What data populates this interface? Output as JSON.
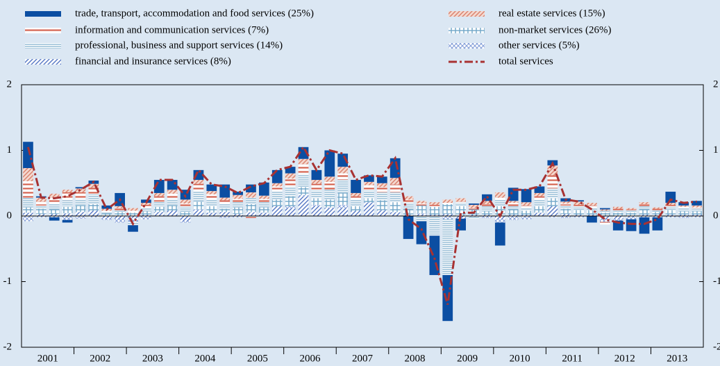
{
  "chart_data": {
    "type": "bar",
    "stacked": true,
    "categories": [
      null,
      "2001",
      null,
      null,
      null,
      "2002",
      null,
      null,
      null,
      "2003",
      null,
      null,
      null,
      "2004",
      null,
      null,
      null,
      "2005",
      null,
      null,
      null,
      "2006",
      null,
      null,
      null,
      "2007",
      null,
      null,
      null,
      "2008",
      null,
      null,
      null,
      "2009",
      null,
      null,
      null,
      "2010",
      null,
      null,
      null,
      "2011",
      null,
      null,
      null,
      "2012",
      null,
      null,
      null,
      "2013",
      null,
      null
    ],
    "series": [
      {
        "name": "trade, transport, accommodation and food services (25%)",
        "color": "#0b4ea2",
        "values": [
          0.4,
          0.02,
          -0.05,
          -0.04,
          0.02,
          0.05,
          0.05,
          0.2,
          -0.1,
          0.05,
          0.2,
          0.15,
          0.15,
          0.15,
          0.1,
          0.2,
          0.05,
          0.12,
          0.2,
          0.2,
          0.1,
          0.18,
          0.15,
          0.4,
          0.2,
          0.2,
          0.1,
          0.1,
          0.3,
          -0.35,
          -0.35,
          -0.6,
          -0.7,
          -0.18,
          0.02,
          0.1,
          -0.35,
          0.2,
          0.2,
          0.1,
          0.08,
          0.05,
          0.02,
          -0.1,
          0.02,
          -0.15,
          -0.18,
          -0.25,
          -0.2,
          0.17,
          0.05,
          0.07
        ]
      },
      {
        "name": "information and communication services (7%)",
        "color": "#d4624f",
        "values": [
          0.25,
          0.06,
          0.1,
          0.12,
          0.1,
          0.1,
          0.02,
          0.04,
          0.03,
          0.05,
          0.08,
          0.08,
          0.05,
          0.12,
          0.08,
          0.05,
          0.05,
          -0.03,
          0.05,
          0.08,
          0.12,
          0.15,
          0.1,
          0.12,
          0.1,
          0.05,
          0.08,
          0.08,
          0.12,
          0.05,
          0.03,
          0.03,
          0.02,
          0.02,
          0.02,
          0.03,
          0.03,
          0.05,
          0.03,
          0.05,
          0.2,
          0.03,
          0.03,
          0.03,
          -0.04,
          0.03,
          0.02,
          0.03,
          0.02,
          0.03,
          0.02,
          0.02
        ]
      },
      {
        "name": "professional, business and support services (14%)",
        "color": "#8fb8d2",
        "values": [
          0.15,
          0.05,
          0.08,
          0.1,
          0.1,
          0.15,
          0.02,
          0.02,
          -0.05,
          0.05,
          0.08,
          0.1,
          0.08,
          0.15,
          0.1,
          0.08,
          0.08,
          0.1,
          0.08,
          0.12,
          0.15,
          0.2,
          0.12,
          0.15,
          0.2,
          0.1,
          0.12,
          0.12,
          0.15,
          0.1,
          -0.08,
          -0.3,
          -0.85,
          0.05,
          -0.03,
          0.08,
          0.1,
          0.05,
          0.05,
          0.1,
          0.15,
          0.05,
          0.05,
          0.04,
          0.03,
          0.03,
          0.03,
          0.05,
          0.03,
          0.05,
          0.05,
          0.04
        ]
      },
      {
        "name": "financial and insurance services (8%)",
        "color": "#5577c4",
        "values": [
          0.05,
          0.03,
          0.03,
          0.04,
          0.06,
          0.08,
          -0.03,
          -0.05,
          -0.03,
          0.02,
          0.06,
          0.08,
          -0.08,
          0.08,
          0.05,
          0.06,
          0.03,
          0.05,
          0.05,
          0.15,
          0.12,
          0.3,
          0.15,
          0.12,
          0.12,
          0.08,
          0.2,
          0.08,
          0.05,
          0.02,
          0.02,
          0.02,
          0.03,
          -0.04,
          0.02,
          0.02,
          -0.05,
          0.02,
          0.02,
          0.05,
          0.15,
          0.03,
          0.02,
          0.02,
          -0.05,
          -0.04,
          -0.02,
          0.02,
          0.02,
          0.02,
          0.02,
          0.02
        ]
      },
      {
        "name": "real estate services (15%)",
        "color": "#d9806c",
        "values": [
          0.2,
          0.06,
          0.06,
          0.04,
          0.06,
          0.06,
          0.03,
          0.03,
          0.04,
          0.03,
          0.05,
          0.06,
          0.06,
          0.06,
          0.05,
          0.04,
          0.06,
          0.08,
          0.05,
          0.05,
          0.08,
          0.08,
          0.06,
          0.08,
          0.1,
          0.05,
          0.05,
          0.06,
          0.1,
          0.05,
          0.04,
          0.04,
          0.05,
          0.05,
          0.05,
          0.05,
          0.08,
          0.03,
          0.05,
          0.05,
          0.15,
          0.03,
          0.05,
          0.04,
          0.02,
          0.03,
          0.02,
          0.03,
          0.02,
          0.03,
          0.02,
          0.03
        ]
      },
      {
        "name": "non-market services (26%)",
        "color": "#6fa6c8",
        "values": [
          0.08,
          0.08,
          0.07,
          0.1,
          0.1,
          0.1,
          0.04,
          0.06,
          0.05,
          0.05,
          0.08,
          0.08,
          0.06,
          0.12,
          0.1,
          0.05,
          0.1,
          0.12,
          0.08,
          0.1,
          0.15,
          0.12,
          0.1,
          0.12,
          0.18,
          0.07,
          0.06,
          0.15,
          0.15,
          0.08,
          0.12,
          0.12,
          0.15,
          0.15,
          0.08,
          0.05,
          0.15,
          0.08,
          0.06,
          0.1,
          0.12,
          0.08,
          0.07,
          0.07,
          0.05,
          0.05,
          0.05,
          0.08,
          0.04,
          0.07,
          0.05,
          0.05
        ]
      },
      {
        "name": "other services (5%)",
        "color": "#7f9bd6",
        "values": [
          -0.08,
          -0.02,
          -0.02,
          -0.06,
          -0.04,
          -0.02,
          -0.03,
          -0.05,
          -0.06,
          -0.05,
          0.0,
          0.0,
          -0.02,
          0.02,
          0.0,
          -0.03,
          -0.02,
          0.01,
          -0.01,
          0.0,
          0.03,
          0.02,
          0.02,
          0.01,
          0.05,
          0.0,
          0.01,
          0.01,
          0.01,
          0.0,
          0.02,
          0.0,
          -0.05,
          0.0,
          -0.01,
          -0.03,
          -0.05,
          -0.06,
          -0.05,
          0.0,
          -0.02,
          -0.03,
          -0.02,
          0.0,
          -0.04,
          -0.03,
          -0.03,
          -0.02,
          -0.02,
          -0.02,
          -0.03,
          -0.02
        ]
      }
    ],
    "line": {
      "name": "total services",
      "color": "#a83232",
      "values": [
        1.05,
        0.28,
        0.27,
        0.3,
        0.4,
        0.52,
        0.1,
        0.25,
        -0.12,
        0.2,
        0.55,
        0.55,
        0.3,
        0.7,
        0.48,
        0.45,
        0.35,
        0.45,
        0.5,
        0.7,
        0.75,
        1.05,
        0.7,
        1.0,
        0.95,
        0.55,
        0.62,
        0.6,
        0.88,
        -0.05,
        -0.2,
        -0.65,
        -1.35,
        0.05,
        0.05,
        0.3,
        0.0,
        0.4,
        0.4,
        0.45,
        0.8,
        0.25,
        0.22,
        0.1,
        -0.05,
        -0.1,
        -0.12,
        -0.12,
        -0.05,
        0.25,
        0.2,
        0.22
      ]
    },
    "ylim": [
      -2,
      2
    ],
    "yticks": [
      -2,
      -1,
      0,
      1,
      2
    ],
    "y2lim": [
      -2,
      2
    ],
    "y2ticks": [
      -2,
      -1,
      0,
      1,
      2
    ]
  }
}
